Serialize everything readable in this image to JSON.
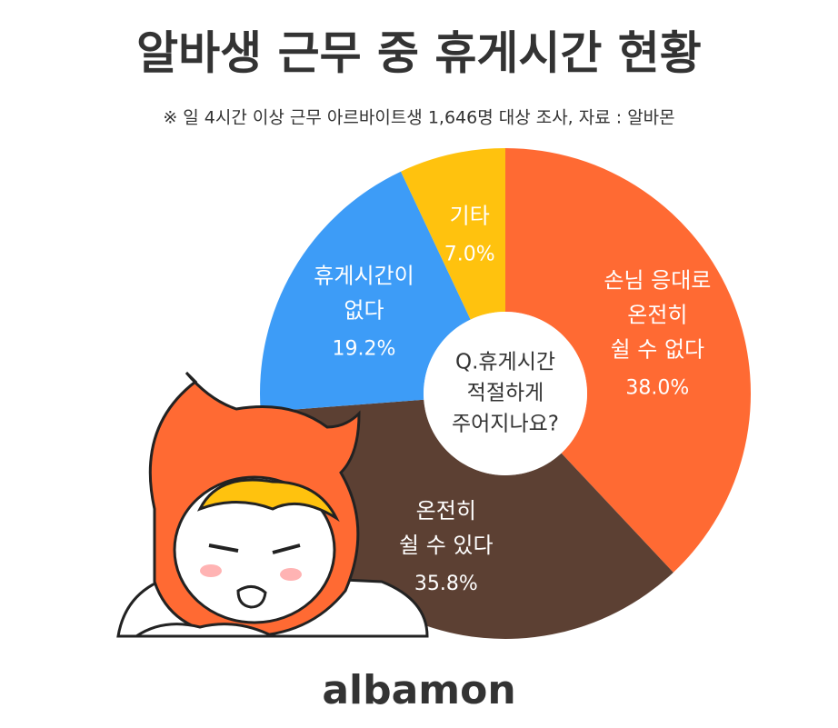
{
  "chart_data": {
    "type": "donut",
    "title": "알바생 근무 중 휴게시간 현황",
    "subtitle": "※ 일 4시간 이상 근무 아르바이트생 1,646명 대상 조사, 자료 : 알바몬",
    "center_label": [
      "Q.휴게시간",
      "적절하게",
      "주어지나요?"
    ],
    "categories": [
      [
        "손님 응대로",
        "온전히",
        "쉴 수 없다"
      ],
      [
        "온전히",
        "쉴 수 있다"
      ],
      [
        "휴게시간이",
        "없다"
      ],
      [
        "기타"
      ]
    ],
    "values": [
      38.0,
      35.8,
      19.2,
      7.0
    ],
    "value_labels": [
      "38.0%",
      "35.8%",
      "19.2%",
      "7.0%"
    ],
    "colors": [
      "#ff6a33",
      "#5c4033",
      "#3d9cf7",
      "#ffc20e"
    ],
    "brand": "albamon"
  }
}
